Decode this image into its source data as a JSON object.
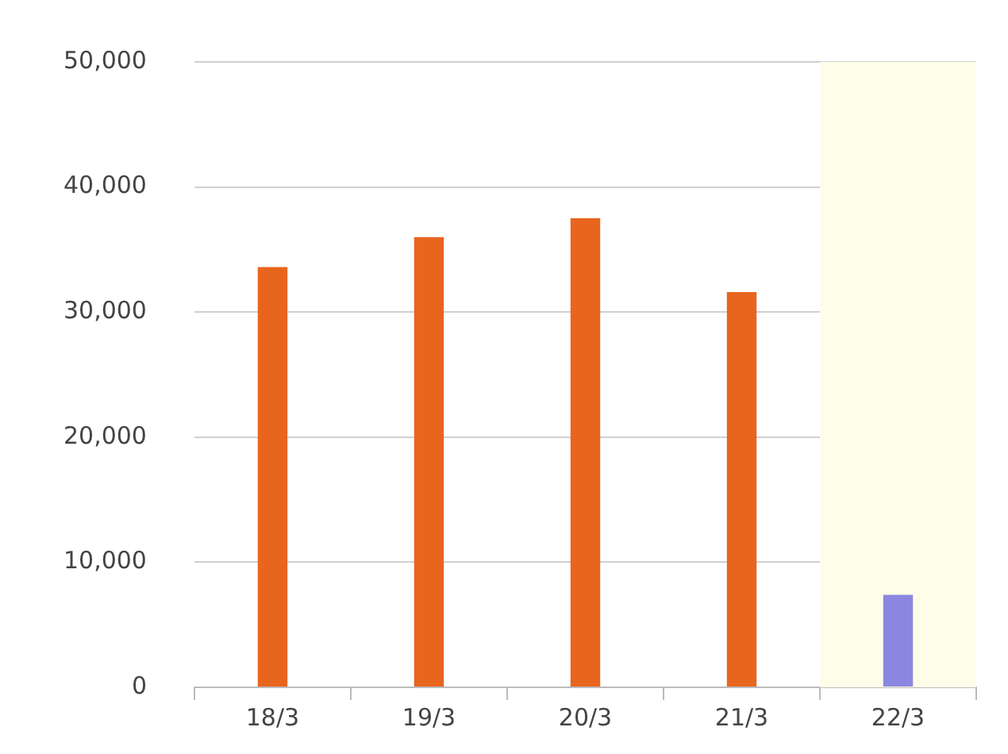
{
  "chart_data": {
    "type": "bar",
    "categories": [
      "18/3",
      "19/3",
      "20/3",
      "21/3",
      "22/3"
    ],
    "values": [
      33600,
      36000,
      37500,
      31600,
      7400
    ],
    "colors": [
      "#e8651e",
      "#e8651e",
      "#e8651e",
      "#e8651e",
      "#8b87e0"
    ],
    "ylim": [
      0,
      50000
    ],
    "yticks": [
      0,
      {
        "value": 10000,
        "label": "10,000"
      },
      {
        "value": 20000,
        "label": "20,000"
      },
      {
        "value": 30000,
        "label": "30,000"
      },
      {
        "value": 40000,
        "label": "40,000"
      },
      {
        "value": 50000,
        "label": "50,000"
      }
    ],
    "grid": "y",
    "legend": false,
    "bands": [
      {
        "axis": "x",
        "from": "22/3",
        "to": "22/3",
        "color": "#fdfde9"
      }
    ]
  }
}
